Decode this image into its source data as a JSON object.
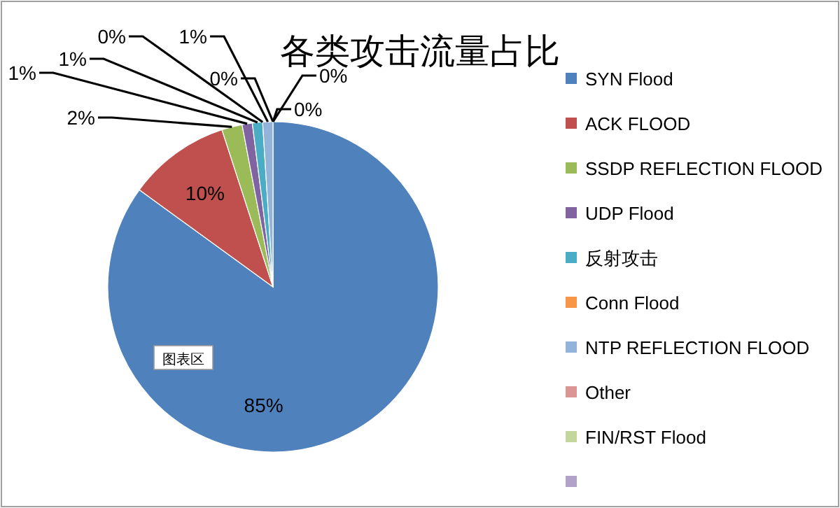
{
  "chart_data": {
    "type": "pie",
    "title": "各类攻击流量占比",
    "categories": [
      "SYN Flood",
      "ACK FLOOD",
      "SSDP REFLECTION FLOOD",
      "UDP Flood",
      "反射攻击",
      "Conn Flood",
      "NTP REFLECTION FLOOD",
      "Other",
      "FIN/RST Flood",
      null
    ],
    "values": [
      85,
      10,
      2,
      1,
      1,
      0,
      1,
      0,
      0,
      0
    ],
    "colors": [
      "#4f81bd",
      "#c0504d",
      "#9bbb59",
      "#8064a2",
      "#4bacc6",
      "#f79646",
      "#93b3db",
      "#d99694",
      "#c3d69b",
      "#b3a2c7"
    ],
    "value_labels": [
      "85%",
      "10%",
      "2%",
      "1%",
      "1%",
      "0%",
      "1%",
      "0%",
      "0%",
      "0%"
    ],
    "legend": "right",
    "annotations": [
      "图表区"
    ]
  }
}
